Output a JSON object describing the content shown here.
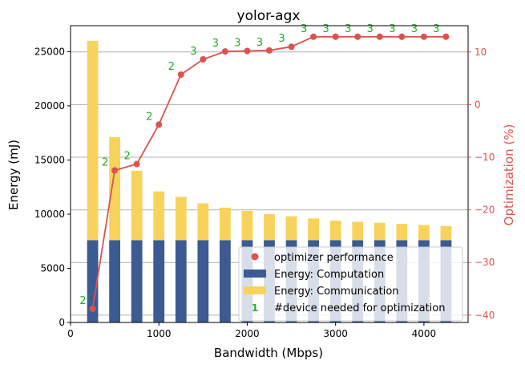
{
  "colors": {
    "computation": "#3b5b92",
    "communication": "#f7d35c",
    "optimization": "#d9534f",
    "device_label": "#22aa22",
    "grid": "#b0b0b0",
    "axis": "#000000"
  },
  "chart_data": {
    "type": "bar",
    "title": "yolor-agx",
    "xlabel": "Bandwidth (Mbps)",
    "ylabel": "Energy (mJ)",
    "y2label": "Optimization (%)",
    "xlim": [
      0,
      4500
    ],
    "ylim": [
      0,
      27400
    ],
    "y2lim": [
      -41.4,
      15.0
    ],
    "x_ticks": [
      0,
      1000,
      2000,
      3000,
      4000
    ],
    "y_ticks": [
      0,
      5000,
      10000,
      15000,
      20000,
      25000
    ],
    "y2_ticks": [
      -40,
      -30,
      -20,
      -10,
      0,
      10
    ],
    "grid": "horizontal, right axis ticks",
    "legend_position": "lower-right",
    "x": [
      250,
      500,
      750,
      1000,
      1250,
      1500,
      1750,
      2000,
      2250,
      2500,
      2750,
      3000,
      3250,
      3500,
      3750,
      4000,
      4250
    ],
    "series": [
      {
        "name": "Energy: Computation",
        "type": "bar",
        "values": [
          7600,
          7600,
          7600,
          7600,
          7600,
          7600,
          7600,
          7600,
          7600,
          7600,
          7600,
          7600,
          7600,
          7600,
          7600,
          7600,
          7600
        ]
      },
      {
        "name": "Energy: Communication",
        "type": "bar-stacked",
        "values": [
          18400,
          9500,
          6400,
          4500,
          4000,
          3400,
          3000,
          2700,
          2400,
          2200,
          2000,
          1800,
          1700,
          1600,
          1500,
          1400,
          1300
        ]
      },
      {
        "name": "optimizer performance",
        "type": "line",
        "axis": "right",
        "values": [
          -38.8,
          -12.5,
          -11.3,
          -3.8,
          5.7,
          8.6,
          10.1,
          10.2,
          10.3,
          11.0,
          12.9,
          12.9,
          12.9,
          12.9,
          12.9,
          12.9,
          12.9
        ]
      }
    ],
    "device_counts": [
      "2",
      "2",
      "2",
      "2",
      "2",
      "3",
      "3",
      "3",
      "3",
      "3",
      "3",
      "3",
      "3",
      "3",
      "3",
      "3",
      "3"
    ],
    "legend": [
      {
        "label": "optimizer performance",
        "symbol": "dot"
      },
      {
        "label": "Energy: Computation",
        "symbol": "computation"
      },
      {
        "label": "Energy: Communication",
        "symbol": "communication"
      },
      {
        "label": "#device needed for optimization",
        "symbol": "1"
      }
    ]
  }
}
